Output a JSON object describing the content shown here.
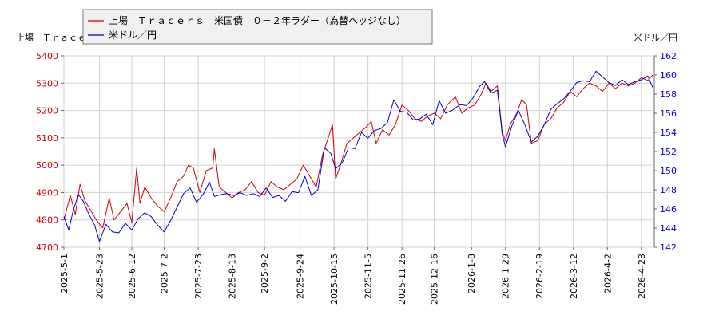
{
  "chart_data": {
    "type": "line",
    "left_axis_title": "上場　Ｔｒａｃｅ",
    "right_axis_title": "米ドル／円",
    "left_ylim": [
      4700,
      5400
    ],
    "left_yticks": [
      "4700",
      "4800",
      "4900",
      "5000",
      "5100",
      "5200",
      "5300",
      "5400"
    ],
    "right_ylim": [
      142,
      162
    ],
    "right_yticks": [
      "142",
      "144",
      "146",
      "148",
      "150",
      "152",
      "154",
      "156",
      "158",
      "160",
      "162"
    ],
    "xlim": [
      "2025-05-01",
      "2026-05-01"
    ],
    "xticks": [
      "2025-5-1",
      "2025-5-23",
      "2025-6-12",
      "2025-7-2",
      "2025-7-23",
      "2025-8-13",
      "2025-9-2",
      "2025-9-24",
      "2025-10-15",
      "2025-11-5",
      "2025-11-26",
      "2025-12-16",
      "2026-1-8",
      "2026-1-29",
      "2026-2-19",
      "2026-3-12",
      "2026-4-2",
      "2026-4-23"
    ],
    "grid": true,
    "legend_placement": "top-left",
    "series": [
      {
        "name": "上場　Ｔｒａｃｅｒｓ　米国債　０－２年ラダー（為替ヘッジなし）",
        "axis": "left",
        "color": "#cc0000",
        "points": [
          [
            "2025-05-01",
            4800
          ],
          [
            "2025-05-05",
            4890
          ],
          [
            "2025-05-08",
            4820
          ],
          [
            "2025-05-11",
            4930
          ],
          [
            "2025-05-14",
            4870
          ],
          [
            "2025-05-17",
            4840
          ],
          [
            "2025-05-21",
            4800
          ],
          [
            "2025-05-25",
            4770
          ],
          [
            "2025-05-29",
            4880
          ],
          [
            "2025-06-01",
            4800
          ],
          [
            "2025-06-05",
            4830
          ],
          [
            "2025-06-09",
            4860
          ],
          [
            "2025-06-12",
            4790
          ],
          [
            "2025-06-15",
            4990
          ],
          [
            "2025-06-17",
            4860
          ],
          [
            "2025-06-20",
            4920
          ],
          [
            "2025-06-24",
            4880
          ],
          [
            "2025-06-28",
            4850
          ],
          [
            "2025-07-02",
            4830
          ],
          [
            "2025-07-06",
            4880
          ],
          [
            "2025-07-10",
            4940
          ],
          [
            "2025-07-14",
            4960
          ],
          [
            "2025-07-17",
            5000
          ],
          [
            "2025-07-20",
            4990
          ],
          [
            "2025-07-24",
            4900
          ],
          [
            "2025-07-28",
            4980
          ],
          [
            "2025-08-01",
            4990
          ],
          [
            "2025-08-02",
            5060
          ],
          [
            "2025-08-05",
            4920
          ],
          [
            "2025-08-09",
            4900
          ],
          [
            "2025-08-13",
            4880
          ],
          [
            "2025-08-17",
            4900
          ],
          [
            "2025-08-21",
            4910
          ],
          [
            "2025-08-25",
            4940
          ],
          [
            "2025-08-29",
            4900
          ],
          [
            "2025-09-02",
            4890
          ],
          [
            "2025-09-06",
            4940
          ],
          [
            "2025-09-10",
            4920
          ],
          [
            "2025-09-14",
            4910
          ],
          [
            "2025-09-18",
            4930
          ],
          [
            "2025-09-22",
            4950
          ],
          [
            "2025-09-26",
            5000
          ],
          [
            "2025-09-30",
            4960
          ],
          [
            "2025-10-04",
            4920
          ],
          [
            "2025-10-08",
            5040
          ],
          [
            "2025-10-12",
            5110
          ],
          [
            "2025-10-14",
            5150
          ],
          [
            "2025-10-16",
            4950
          ],
          [
            "2025-10-19",
            5000
          ],
          [
            "2025-10-23",
            5080
          ],
          [
            "2025-10-27",
            5100
          ],
          [
            "2025-10-31",
            5120
          ],
          [
            "2025-11-04",
            5140
          ],
          [
            "2025-11-07",
            5160
          ],
          [
            "2025-11-10",
            5080
          ],
          [
            "2025-11-14",
            5130
          ],
          [
            "2025-11-18",
            5110
          ],
          [
            "2025-11-22",
            5150
          ],
          [
            "2025-11-26",
            5220
          ],
          [
            "2025-11-30",
            5200
          ],
          [
            "2025-12-04",
            5170
          ],
          [
            "2025-12-08",
            5160
          ],
          [
            "2025-12-12",
            5180
          ],
          [
            "2025-12-16",
            5190
          ],
          [
            "2025-12-20",
            5170
          ],
          [
            "2025-12-24",
            5220
          ],
          [
            "2025-12-29",
            5250
          ],
          [
            "2026-01-02",
            5190
          ],
          [
            "2026-01-06",
            5210
          ],
          [
            "2026-01-10",
            5220
          ],
          [
            "2026-01-14",
            5260
          ],
          [
            "2026-01-17",
            5300
          ],
          [
            "2026-01-20",
            5270
          ],
          [
            "2026-01-24",
            5290
          ],
          [
            "2026-01-27",
            5120
          ],
          [
            "2026-01-29",
            5090
          ],
          [
            "2026-02-01",
            5150
          ],
          [
            "2026-02-05",
            5190
          ],
          [
            "2026-02-08",
            5240
          ],
          [
            "2026-02-11",
            5220
          ],
          [
            "2026-02-14",
            5080
          ],
          [
            "2026-02-18",
            5090
          ],
          [
            "2026-02-22",
            5150
          ],
          [
            "2026-02-26",
            5170
          ],
          [
            "2026-03-02",
            5210
          ],
          [
            "2026-03-06",
            5230
          ],
          [
            "2026-03-10",
            5270
          ],
          [
            "2026-03-14",
            5250
          ],
          [
            "2026-03-18",
            5280
          ],
          [
            "2026-03-22",
            5300
          ],
          [
            "2026-03-26",
            5290
          ],
          [
            "2026-03-30",
            5270
          ],
          [
            "2026-04-03",
            5300
          ],
          [
            "2026-04-07",
            5280
          ],
          [
            "2026-04-11",
            5300
          ],
          [
            "2026-04-15",
            5290
          ],
          [
            "2026-04-19",
            5300
          ],
          [
            "2026-04-23",
            5320
          ],
          [
            "2026-04-27",
            5310
          ],
          [
            "2026-04-30",
            5330
          ]
        ]
      },
      {
        "name": "米ドル／円",
        "axis": "right",
        "color": "#0000cc",
        "points": [
          [
            "2025-05-01",
            145.2
          ],
          [
            "2025-05-04",
            143.8
          ],
          [
            "2025-05-07",
            146.0
          ],
          [
            "2025-05-10",
            147.5
          ],
          [
            "2025-05-13",
            146.8
          ],
          [
            "2025-05-16",
            145.6
          ],
          [
            "2025-05-20",
            144.3
          ],
          [
            "2025-05-23",
            142.6
          ],
          [
            "2025-05-27",
            144.4
          ],
          [
            "2025-05-31",
            143.6
          ],
          [
            "2025-06-04",
            143.5
          ],
          [
            "2025-06-08",
            144.5
          ],
          [
            "2025-06-12",
            143.8
          ],
          [
            "2025-06-16",
            145.0
          ],
          [
            "2025-06-20",
            145.6
          ],
          [
            "2025-06-24",
            145.2
          ],
          [
            "2025-06-28",
            144.3
          ],
          [
            "2025-07-02",
            143.6
          ],
          [
            "2025-07-06",
            144.8
          ],
          [
            "2025-07-10",
            146.2
          ],
          [
            "2025-07-14",
            147.6
          ],
          [
            "2025-07-18",
            148.2
          ],
          [
            "2025-07-22",
            146.7
          ],
          [
            "2025-07-26",
            147.5
          ],
          [
            "2025-07-30",
            148.8
          ],
          [
            "2025-08-02",
            147.3
          ],
          [
            "2025-08-06",
            147.5
          ],
          [
            "2025-08-10",
            147.6
          ],
          [
            "2025-08-14",
            147.4
          ],
          [
            "2025-08-18",
            147.7
          ],
          [
            "2025-08-22",
            147.4
          ],
          [
            "2025-08-26",
            147.6
          ],
          [
            "2025-08-30",
            147.3
          ],
          [
            "2025-09-03",
            148.2
          ],
          [
            "2025-09-07",
            147.2
          ],
          [
            "2025-09-11",
            147.4
          ],
          [
            "2025-09-15",
            146.8
          ],
          [
            "2025-09-19",
            147.8
          ],
          [
            "2025-09-23",
            147.7
          ],
          [
            "2025-09-27",
            149.4
          ],
          [
            "2025-10-01",
            147.4
          ],
          [
            "2025-10-05",
            148.0
          ],
          [
            "2025-10-09",
            152.4
          ],
          [
            "2025-10-13",
            151.8
          ],
          [
            "2025-10-16",
            150.2
          ],
          [
            "2025-10-20",
            150.8
          ],
          [
            "2025-10-24",
            152.4
          ],
          [
            "2025-10-28",
            152.3
          ],
          [
            "2025-11-01",
            154.0
          ],
          [
            "2025-11-05",
            153.4
          ],
          [
            "2025-11-09",
            154.2
          ],
          [
            "2025-11-13",
            154.4
          ],
          [
            "2025-11-17",
            155.0
          ],
          [
            "2025-11-21",
            157.4
          ],
          [
            "2025-11-25",
            156.2
          ],
          [
            "2025-11-29",
            156.1
          ],
          [
            "2025-12-03",
            155.3
          ],
          [
            "2025-12-07",
            155.4
          ],
          [
            "2025-12-11",
            155.9
          ],
          [
            "2025-12-15",
            154.8
          ],
          [
            "2025-12-19",
            157.3
          ],
          [
            "2025-12-23",
            156.0
          ],
          [
            "2025-12-27",
            156.3
          ],
          [
            "2026-01-01",
            156.9
          ],
          [
            "2026-01-05",
            156.8
          ],
          [
            "2026-01-09",
            157.6
          ],
          [
            "2026-01-13",
            158.8
          ],
          [
            "2026-01-16",
            159.3
          ],
          [
            "2026-01-20",
            158.1
          ],
          [
            "2026-01-24",
            158.4
          ],
          [
            "2026-01-27",
            153.8
          ],
          [
            "2026-01-29",
            152.5
          ],
          [
            "2026-02-02",
            154.7
          ],
          [
            "2026-02-06",
            156.3
          ],
          [
            "2026-02-10",
            154.8
          ],
          [
            "2026-02-14",
            153.0
          ],
          [
            "2026-02-18",
            153.6
          ],
          [
            "2026-02-22",
            154.8
          ],
          [
            "2026-02-26",
            156.4
          ],
          [
            "2026-03-02",
            157.0
          ],
          [
            "2026-03-06",
            157.5
          ],
          [
            "2026-03-10",
            158.3
          ],
          [
            "2026-03-14",
            159.2
          ],
          [
            "2026-03-18",
            159.4
          ],
          [
            "2026-03-22",
            159.3
          ],
          [
            "2026-03-26",
            160.4
          ],
          [
            "2026-03-30",
            159.8
          ],
          [
            "2026-04-03",
            159.2
          ],
          [
            "2026-04-07",
            158.9
          ],
          [
            "2026-04-11",
            159.5
          ],
          [
            "2026-04-15",
            159.0
          ],
          [
            "2026-04-19",
            159.3
          ],
          [
            "2026-04-23",
            159.5
          ],
          [
            "2026-04-27",
            159.9
          ],
          [
            "2026-04-30",
            158.7
          ]
        ]
      }
    ]
  }
}
